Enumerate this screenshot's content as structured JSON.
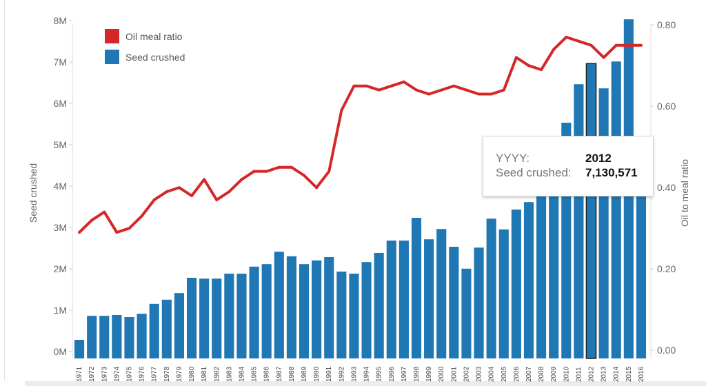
{
  "chart_data": {
    "type": "bar+line",
    "categories": [
      "1971",
      "1972",
      "1973",
      "1974",
      "1975",
      "1976",
      "1977",
      "1978",
      "1979",
      "1980",
      "1981",
      "1982",
      "1983",
      "1984",
      "1985",
      "1986",
      "1987",
      "1988",
      "1989",
      "1990",
      "1991",
      "1992",
      "1993",
      "1994",
      "1995",
      "1996",
      "1997",
      "1998",
      "1999",
      "2000",
      "2001",
      "2002",
      "2003",
      "2004",
      "2005",
      "2006",
      "2007",
      "2008",
      "2009",
      "2010",
      "2011",
      "2012",
      "2013",
      "2014",
      "2015",
      "2016"
    ],
    "series": [
      {
        "name": "Seed crushed",
        "type": "bar",
        "axis": "left",
        "color": "#1f77b4",
        "values": [
          450000,
          1030000,
          1030000,
          1050000,
          1000000,
          1080000,
          1320000,
          1420000,
          1580000,
          1950000,
          1930000,
          1930000,
          2050000,
          2050000,
          2220000,
          2280000,
          2580000,
          2470000,
          2280000,
          2370000,
          2450000,
          2100000,
          2050000,
          2330000,
          2550000,
          2850000,
          2850000,
          3400000,
          2880000,
          3130000,
          2700000,
          2170000,
          2680000,
          3380000,
          3120000,
          3600000,
          3780000,
          4300000,
          4600000,
          5700000,
          6630000,
          7130571,
          6530000,
          7180000,
          8200000,
          4500000
        ]
      },
      {
        "name": "Oil meal ratio",
        "type": "line",
        "axis": "right",
        "color": "#d62728",
        "values": [
          0.31,
          0.34,
          0.36,
          0.31,
          0.32,
          0.35,
          0.39,
          0.41,
          0.42,
          0.4,
          0.44,
          0.39,
          0.41,
          0.44,
          0.46,
          0.46,
          0.47,
          0.47,
          0.45,
          0.42,
          0.46,
          0.61,
          0.67,
          0.67,
          0.66,
          0.67,
          0.68,
          0.66,
          0.65,
          0.66,
          0.67,
          0.66,
          0.65,
          0.65,
          0.66,
          0.74,
          0.72,
          0.71,
          0.76,
          0.79,
          0.78,
          0.77,
          0.74,
          0.77,
          0.77,
          0.77
        ]
      }
    ],
    "ylabel": "Seed crushed",
    "ylabel_right": "Oil to meal ratio",
    "ylim": [
      0,
      8000000
    ],
    "ylim_right": [
      0,
      0.8
    ],
    "yticks": [
      "0M",
      "1M",
      "2M",
      "3M",
      "4M",
      "5M",
      "6M",
      "7M",
      "8M"
    ],
    "yticks_right": [
      "0.00",
      "0.20",
      "0.40",
      "0.60",
      "0.80"
    ],
    "legend": [
      "Oil meal ratio",
      "Seed crushed"
    ],
    "legend_position": "top-left",
    "highlighted": "2012"
  },
  "tooltip": {
    "key1": "YYYY:",
    "value1": "2012",
    "key2": "Seed crushed:",
    "value2": "7,130,571"
  }
}
